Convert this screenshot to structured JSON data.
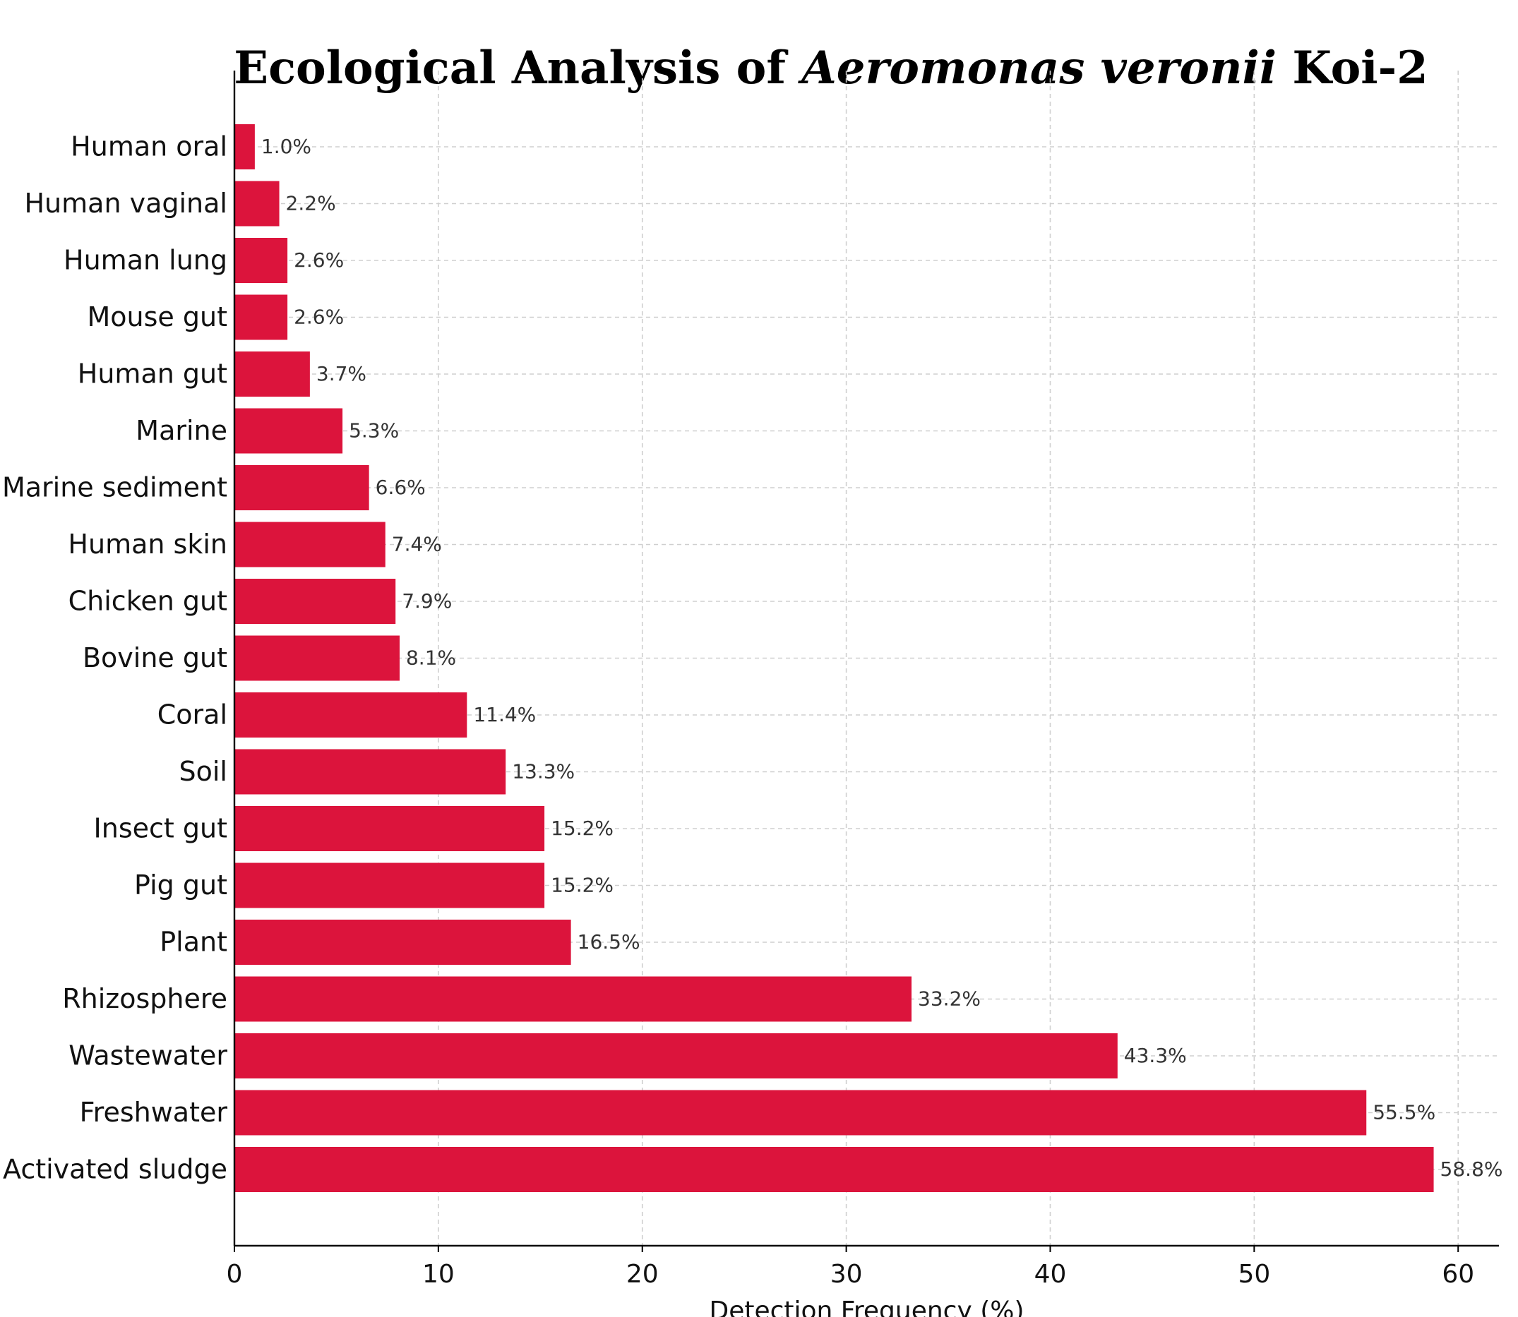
{
  "chart_data": {
    "type": "bar",
    "orientation": "horizontal",
    "title": {
      "prefix": "Ecological Analysis of ",
      "italic": "Aeromonas veronii",
      "suffix": " Koi-2"
    },
    "xlabel": "Detection Frequency (%)",
    "ylabel": "",
    "xlim": [
      0,
      62
    ],
    "xticks": [
      0,
      10,
      20,
      30,
      40,
      50,
      60
    ],
    "grid": true,
    "bar_color": "#dc143c",
    "value_suffix": "%",
    "categories": [
      "Human oral",
      "Human vaginal",
      "Human lung",
      "Mouse gut",
      "Human gut",
      "Marine",
      "Marine sediment",
      "Human skin",
      "Chicken gut",
      "Bovine gut",
      "Coral",
      "Soil",
      "Insect gut",
      "Pig gut",
      "Plant",
      "Rhizosphere",
      "Wastewater",
      "Freshwater",
      "Activated sludge"
    ],
    "values": [
      1.0,
      2.2,
      2.6,
      2.6,
      3.7,
      5.3,
      6.6,
      7.4,
      7.9,
      8.1,
      11.4,
      13.3,
      15.2,
      15.2,
      16.5,
      33.2,
      43.3,
      55.5,
      58.8
    ]
  }
}
